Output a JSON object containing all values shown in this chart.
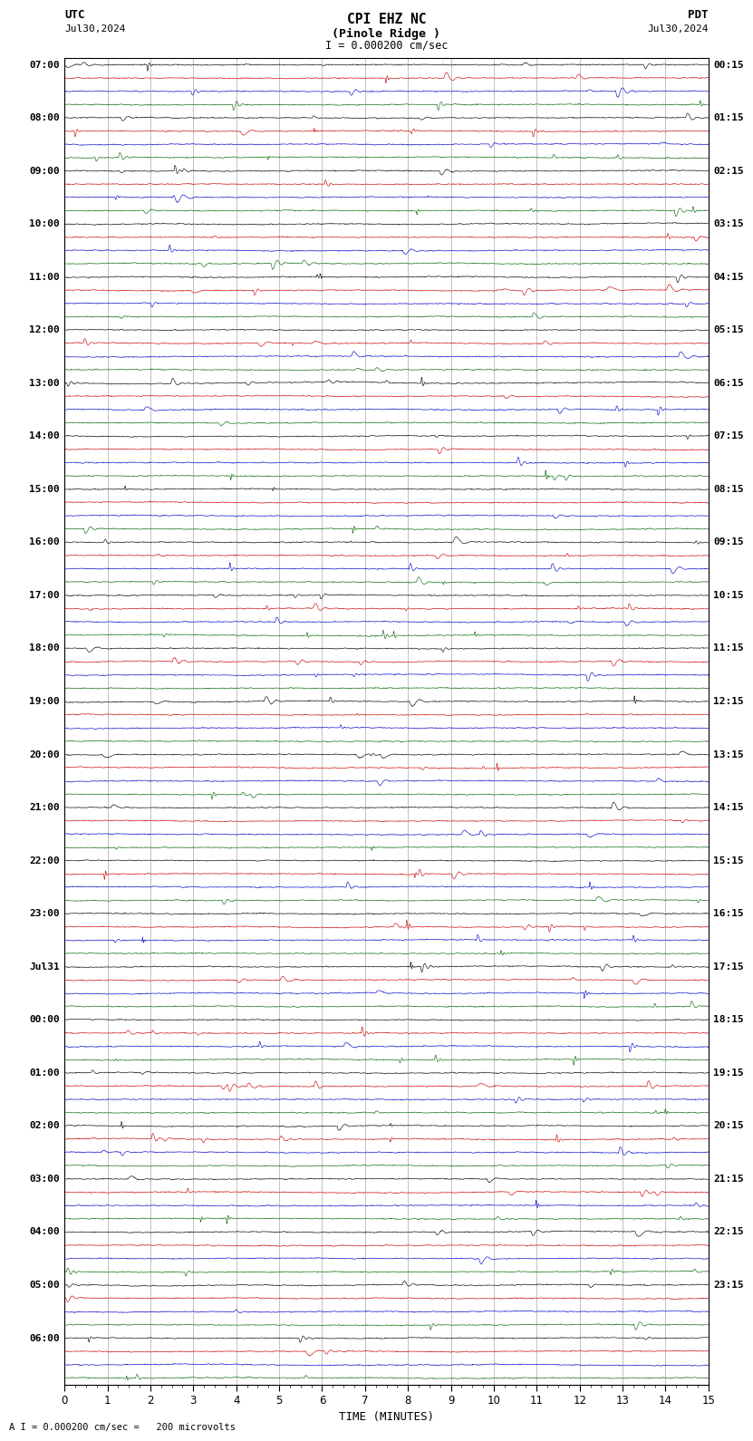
{
  "title_line1": "CPI EHZ NC",
  "title_line2": "(Pinole Ridge )",
  "scale_text": "= 0.000200 cm/sec",
  "utc_label": "UTC",
  "pdt_label": "PDT",
  "utc_date": "Jul30,2024",
  "pdt_date": "Jul30,2024",
  "xlabel": "TIME (MINUTES)",
  "xmin": 0,
  "xmax": 15,
  "background_color": "#ffffff",
  "trace_colors": [
    "#000000",
    "#cc0000",
    "#0000cc",
    "#006600"
  ],
  "utc_hour_labels": [
    "07:00",
    "08:00",
    "09:00",
    "10:00",
    "11:00",
    "12:00",
    "13:00",
    "14:00",
    "15:00",
    "16:00",
    "17:00",
    "18:00",
    "19:00",
    "20:00",
    "21:00",
    "22:00",
    "23:00",
    "Jul31",
    "00:00",
    "01:00",
    "02:00",
    "03:00",
    "04:00",
    "05:00",
    "06:00"
  ],
  "pdt_hour_labels": [
    "00:15",
    "01:15",
    "02:15",
    "03:15",
    "04:15",
    "05:15",
    "06:15",
    "07:15",
    "08:15",
    "09:15",
    "10:15",
    "11:15",
    "12:15",
    "13:15",
    "14:15",
    "15:15",
    "16:15",
    "17:15",
    "18:15",
    "19:15",
    "20:15",
    "21:15",
    "22:15",
    "23:15"
  ],
  "num_hour_groups": 25,
  "traces_per_group": 4,
  "noise_base": 0.12,
  "noise_hf_scale": 0.6,
  "spike_probability": 0.0015,
  "spike_amplitude": 1.8,
  "amp_scale": 0.38
}
